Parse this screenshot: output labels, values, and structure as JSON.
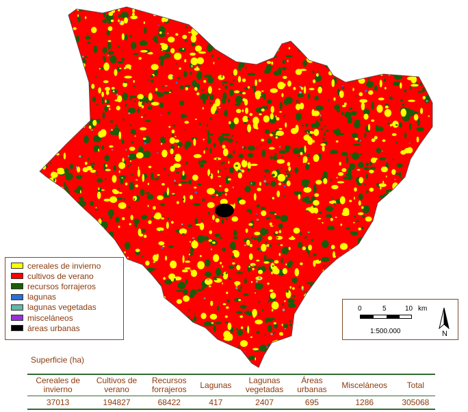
{
  "colors": {
    "cereales_invierno": "#ffff00",
    "cultivos_verano": "#ff0000",
    "recursos_forrajeros": "#1a5c0a",
    "lagunas": "#2b6fd6",
    "lagunas_vegetadas": "#5fb8a6",
    "miscelaneos": "#9b30d8",
    "areas_urbanas": "#000000"
  },
  "legend": {
    "items": [
      {
        "key": "cereales_invierno",
        "label": "cereales de invierno"
      },
      {
        "key": "cultivos_verano",
        "label": "cultivos de verano"
      },
      {
        "key": "recursos_forrajeros",
        "label": "recursos forrajeros"
      },
      {
        "key": "lagunas",
        "label": "lagunas"
      },
      {
        "key": "lagunas_vegetadas",
        "label": "lagunas vegetadas"
      },
      {
        "key": "miscelaneos",
        "label": "misceláneos"
      },
      {
        "key": "areas_urbanas",
        "label": "áreas urbanas"
      }
    ]
  },
  "scale": {
    "ticks": [
      "0",
      "5",
      "10"
    ],
    "unit": "km",
    "ratio": "1:500.000"
  },
  "north_label": "N",
  "table": {
    "title": "Superficie (ha)",
    "headers": [
      [
        "Cereales de",
        "invierno"
      ],
      [
        "Cultivos de",
        "verano"
      ],
      [
        "Recursos",
        "forrajeros"
      ],
      [
        "Lagunas",
        ""
      ],
      [
        "Lagunas",
        "vegetadas"
      ],
      [
        "Áreas",
        "urbanas"
      ],
      [
        "Misceláneos",
        ""
      ],
      [
        "Total",
        ""
      ]
    ],
    "values": [
      "37013",
      "194827",
      "68422",
      "417",
      "2407",
      "695",
      "1286",
      "305068"
    ]
  }
}
